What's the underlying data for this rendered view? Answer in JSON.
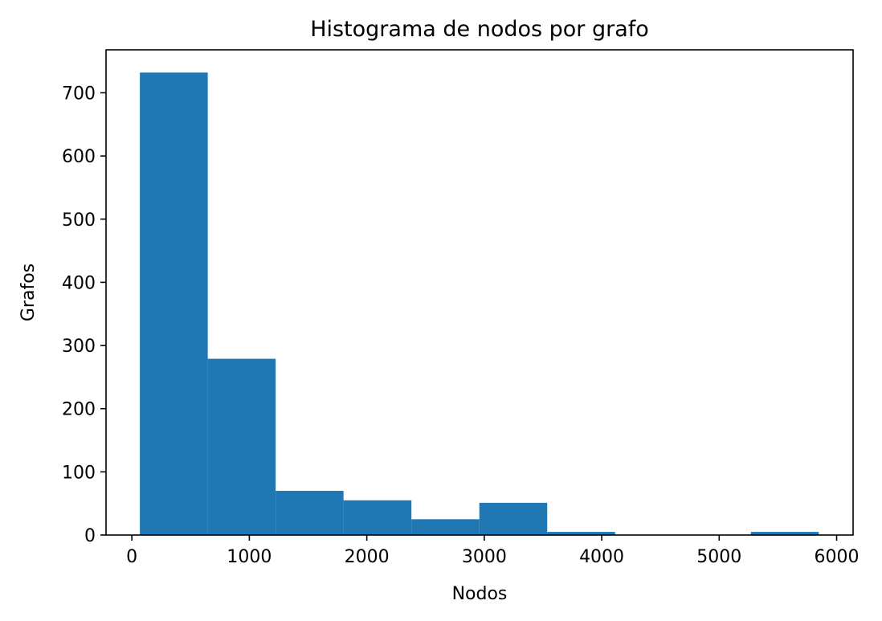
{
  "chart_data": {
    "type": "bar",
    "title": "Histograma de nodos por grafo",
    "xlabel": "Nodos",
    "ylabel": "Grafos",
    "bin_edges": [
      68,
      646,
      1224,
      1802,
      2380,
      2958,
      3536,
      4114,
      4692,
      5270,
      5848
    ],
    "values": [
      732,
      279,
      70,
      55,
      25,
      51,
      5,
      0,
      0,
      5
    ],
    "xlim": [
      -220,
      6140
    ],
    "ylim": [
      0,
      768
    ],
    "xticks": [
      0,
      1000,
      2000,
      3000,
      4000,
      5000,
      6000
    ],
    "yticks": [
      0,
      100,
      200,
      300,
      400,
      500,
      600,
      700
    ],
    "xtick_labels": [
      "0",
      "1000",
      "2000",
      "3000",
      "4000",
      "5000",
      "6000"
    ],
    "ytick_labels": [
      "0",
      "100",
      "200",
      "300",
      "400",
      "500",
      "600",
      "700"
    ],
    "grid": false,
    "legend": "none",
    "bar_color": "#1f77b4"
  }
}
